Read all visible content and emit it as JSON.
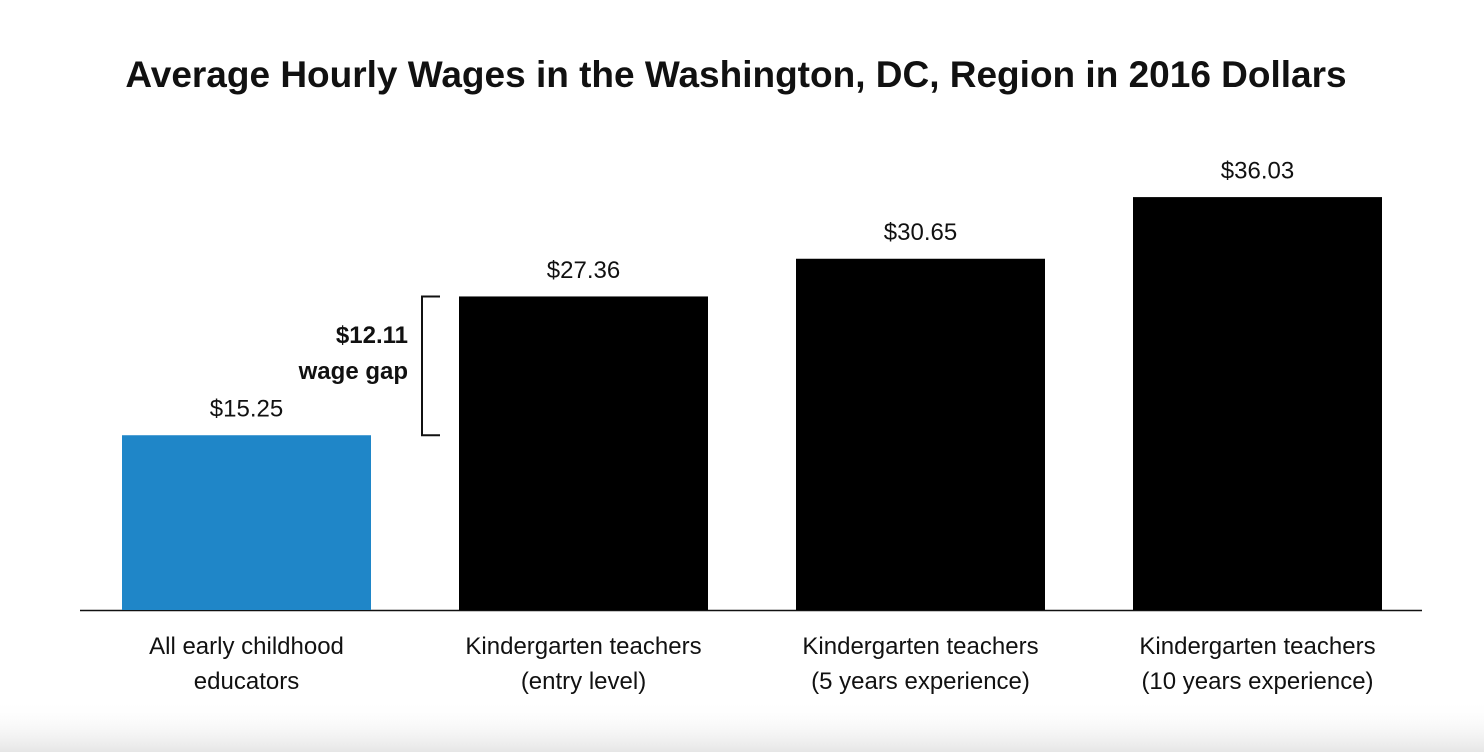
{
  "chart_data": {
    "type": "bar",
    "title": "Average Hourly Wages in the Washington, DC, Region in 2016 Dollars",
    "categories": [
      "All early childhood\neducators",
      "Kindergarten teachers\n(entry level)",
      "Kindergarten teachers\n(5 years experience)",
      "Kindergarten teachers\n(10 years experience)"
    ],
    "values": [
      15.25,
      27.36,
      30.65,
      36.03
    ],
    "value_labels": [
      "$15.25",
      "$27.36",
      "$30.65",
      "$36.03"
    ],
    "colors": [
      "#1f86c8",
      "#000000",
      "#000000",
      "#000000"
    ],
    "annotation": {
      "value": 12.11,
      "value_label": "$12.11",
      "text": "wage gap"
    }
  }
}
